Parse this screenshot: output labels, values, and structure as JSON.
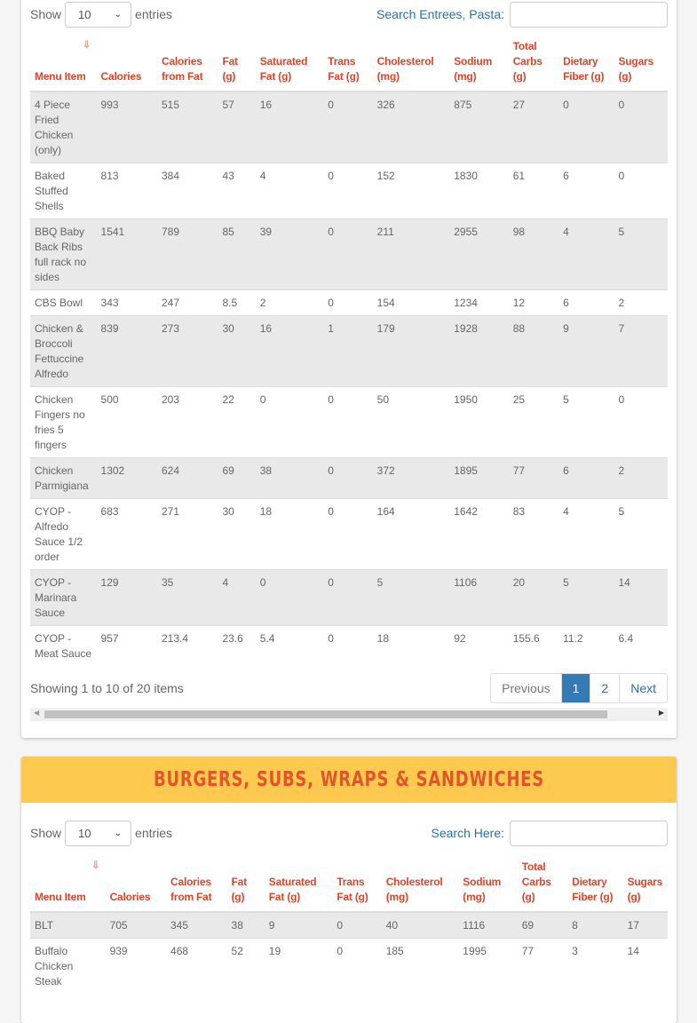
{
  "section1": {
    "show_label": "Show",
    "entries_label": "entries",
    "page_size": "10",
    "search_label": "Search Entrees, Pasta:",
    "search_value": "",
    "columns": [
      "Menu Item",
      "Calories",
      "Calories from Fat",
      "Fat (g)",
      "Saturated Fat (g)",
      "Trans Fat (g)",
      "Cholesterol (mg)",
      "Sodium (mg)",
      "Total Carbs (g)",
      "Dietary Fiber (g)",
      "Sugars (g)"
    ],
    "rows": [
      [
        "4 Piece Fried Chicken (only)",
        "993",
        "515",
        "57",
        "16",
        "0",
        "326",
        "875",
        "27",
        "0",
        "0"
      ],
      [
        "Baked Stuffed Shells",
        "813",
        "384",
        "43",
        "4",
        "0",
        "152",
        "1830",
        "61",
        "6",
        "0"
      ],
      [
        "BBQ Baby Back Ribs full rack no sides",
        "1541",
        "789",
        "85",
        "39",
        "0",
        "211",
        "2955",
        "98",
        "4",
        "5"
      ],
      [
        "CBS Bowl",
        "343",
        "247",
        "8.5",
        "2",
        "0",
        "154",
        "1234",
        "12",
        "6",
        "2"
      ],
      [
        "Chicken & Broccoli Fettuccine Alfredo",
        "839",
        "273",
        "30",
        "16",
        "1",
        "179",
        "1928",
        "88",
        "9",
        "7"
      ],
      [
        "Chicken Fingers no fries 5 fingers",
        "500",
        "203",
        "22",
        "0",
        "0",
        "50",
        "1950",
        "25",
        "5",
        "0"
      ],
      [
        "Chicken Parmigiana",
        "1302",
        "624",
        "69",
        "38",
        "0",
        "372",
        "1895",
        "77",
        "6",
        "2"
      ],
      [
        "CYOP - Alfredo Sauce 1/2 order",
        "683",
        "271",
        "30",
        "18",
        "0",
        "164",
        "1642",
        "83",
        "4",
        "5"
      ],
      [
        "CYOP - Marinara Sauce",
        "129",
        "35",
        "4",
        "0",
        "0",
        "5",
        "1106",
        "20",
        "5",
        "14"
      ],
      [
        "CYOP - Meat Sauce",
        "957",
        "213.4",
        "23.6",
        "5.4",
        "0",
        "18",
        "92",
        "155.6",
        "11.2",
        "6.4"
      ]
    ],
    "info": "Showing 1 to 10 of 20 items",
    "pager": {
      "previous": "Previous",
      "pages": [
        "1",
        "2"
      ],
      "active": "1",
      "next": "Next"
    }
  },
  "section2": {
    "title": "BURGERS, SUBS, WRAPS & SANDWICHES",
    "show_label": "Show",
    "entries_label": "entries",
    "page_size": "10",
    "search_label": "Search Here:",
    "search_value": "",
    "columns": [
      "Menu Item",
      "Calories",
      "Calories from Fat",
      "Fat (g)",
      "Saturated Fat (g)",
      "Trans Fat (g)",
      "Cholesterol (mg)",
      "Sodium (mg)",
      "Total Carbs (g)",
      "Dietary Fiber (g)",
      "Sugars (g)"
    ],
    "rows": [
      [
        "BLT",
        "705",
        "345",
        "38",
        "9",
        "0",
        "40",
        "1116",
        "69",
        "8",
        "17"
      ],
      [
        "Buffalo Chicken Steak",
        "939",
        "468",
        "52",
        "19",
        "0",
        "185",
        "1995",
        "77",
        "3",
        "14"
      ]
    ]
  },
  "colors": {
    "header_text": "#d9452b",
    "band": "#fdc94f",
    "band_title": "#e0562a",
    "link": "#2d6fa5",
    "active_page": "#337ab7"
  },
  "icons": {
    "sort": "sort-amount-icon",
    "select": "chevron-down-icon"
  }
}
